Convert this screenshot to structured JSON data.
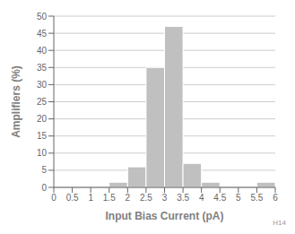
{
  "chart_data": {
    "type": "histogram",
    "xlabel": "Input Bias Current (pA)",
    "ylabel": "Amplifiers (%)",
    "bins": [
      0,
      0.5,
      1.0,
      1.5,
      2.0,
      2.5,
      3.0,
      3.5,
      4.0,
      4.5,
      5.0,
      5.5,
      6.0
    ],
    "values": [
      0,
      0,
      0,
      1.5,
      6,
      35,
      47,
      7,
      1.5,
      0,
      0,
      1.5
    ],
    "color": "#c0c0c0",
    "xlim": [
      0,
      6
    ],
    "ylim": [
      0,
      50
    ],
    "xticks": [
      0,
      0.5,
      1,
      1.5,
      2,
      2.5,
      3,
      3.5,
      4,
      4.5,
      5,
      5.5,
      6
    ],
    "yticks": [
      0,
      5,
      10,
      15,
      20,
      25,
      30,
      35,
      40,
      45,
      50
    ],
    "grid": true,
    "annotations": [
      "H14"
    ]
  }
}
